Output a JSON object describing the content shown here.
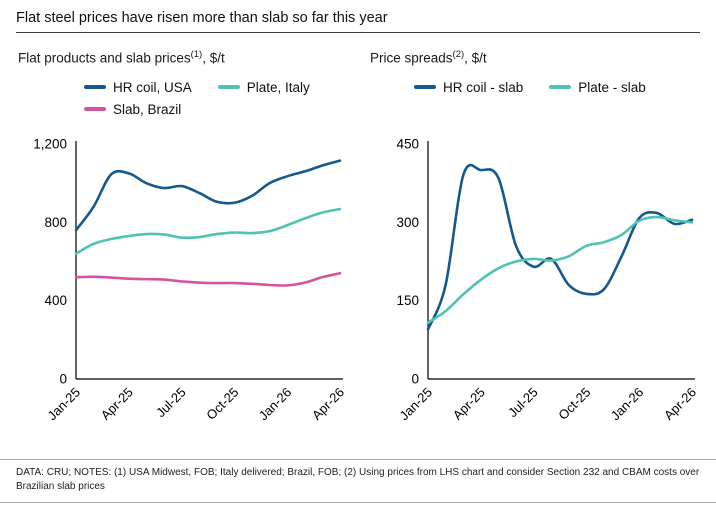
{
  "header": {
    "title": "Flat steel prices have risen more than slab so far this year"
  },
  "footer": {
    "text": "DATA: CRU;  NOTES: (1) USA Midwest, FOB; Italy delivered; Brazil, FOB; (2) Using prices from LHS chart and consider Section 232 and CBAM costs over Brazilian slab prices"
  },
  "colors": {
    "dark_blue": "#14588c",
    "teal": "#4fc2b4",
    "magenta": "#d4559f"
  },
  "chart_data": [
    {
      "type": "line",
      "title": {
        "main": "Flat products and slab prices",
        "sup": "(1)",
        "unit": ", $/t"
      },
      "x": [
        "Jan-25",
        "Feb-25",
        "Mar-25",
        "Apr-25",
        "May-25",
        "Jun-25",
        "Jul-25",
        "Aug-25",
        "Sep-25",
        "Oct-25",
        "Nov-25",
        "Dec-25",
        "Jan-26",
        "Feb-26",
        "Mar-26",
        "Apr-26"
      ],
      "x_tick_labels": [
        "Jan-25",
        "Apr-25",
        "Jul-25",
        "Oct-25",
        "Jan-26",
        "Apr-26"
      ],
      "ylim": [
        0,
        1200
      ],
      "yticks": [
        0,
        400,
        800,
        1200
      ],
      "ytick_labels": [
        "0",
        "400",
        "800",
        "1,200"
      ],
      "grid": false,
      "legend_position": "top",
      "series": [
        {
          "name": "HR coil, USA",
          "color": "#14588c",
          "values": [
            760,
            880,
            1045,
            1050,
            1000,
            975,
            985,
            950,
            905,
            900,
            935,
            1000,
            1035,
            1060,
            1090,
            1115
          ]
        },
        {
          "name": "Plate, Italy",
          "color": "#4fc2b4",
          "values": [
            640,
            690,
            715,
            730,
            740,
            738,
            722,
            725,
            740,
            748,
            745,
            755,
            785,
            820,
            850,
            868
          ]
        },
        {
          "name": "Slab, Brazil",
          "color": "#d4559f",
          "values": [
            520,
            522,
            518,
            512,
            510,
            508,
            498,
            492,
            490,
            490,
            486,
            480,
            478,
            492,
            520,
            540
          ]
        }
      ]
    },
    {
      "type": "line",
      "title": {
        "main": "Price spreads",
        "sup": "(2)",
        "unit": ", $/t"
      },
      "x": [
        "Jan-25",
        "Feb-25",
        "Mar-25",
        "Apr-25",
        "May-25",
        "Jun-25",
        "Jul-25",
        "Aug-25",
        "Sep-25",
        "Oct-25",
        "Nov-25",
        "Dec-25",
        "Jan-26",
        "Feb-26",
        "Mar-26",
        "Apr-26"
      ],
      "x_tick_labels": [
        "Jan-25",
        "Apr-25",
        "Jul-25",
        "Oct-25",
        "Jan-26",
        "Apr-26"
      ],
      "ylim": [
        0,
        450
      ],
      "yticks": [
        0,
        150,
        300,
        450
      ],
      "ytick_labels": [
        "0",
        "150",
        "300",
        "450"
      ],
      "grid": false,
      "legend_position": "top",
      "series": [
        {
          "name": "HR coil - slab",
          "color": "#14588c",
          "values": [
            95,
            180,
            390,
            400,
            385,
            255,
            215,
            230,
            180,
            163,
            172,
            235,
            308,
            318,
            297,
            305
          ]
        },
        {
          "name": "Plate - slab",
          "color": "#4fc2b4",
          "values": [
            108,
            130,
            162,
            190,
            212,
            225,
            230,
            227,
            235,
            255,
            262,
            276,
            303,
            310,
            304,
            300
          ]
        }
      ]
    }
  ]
}
